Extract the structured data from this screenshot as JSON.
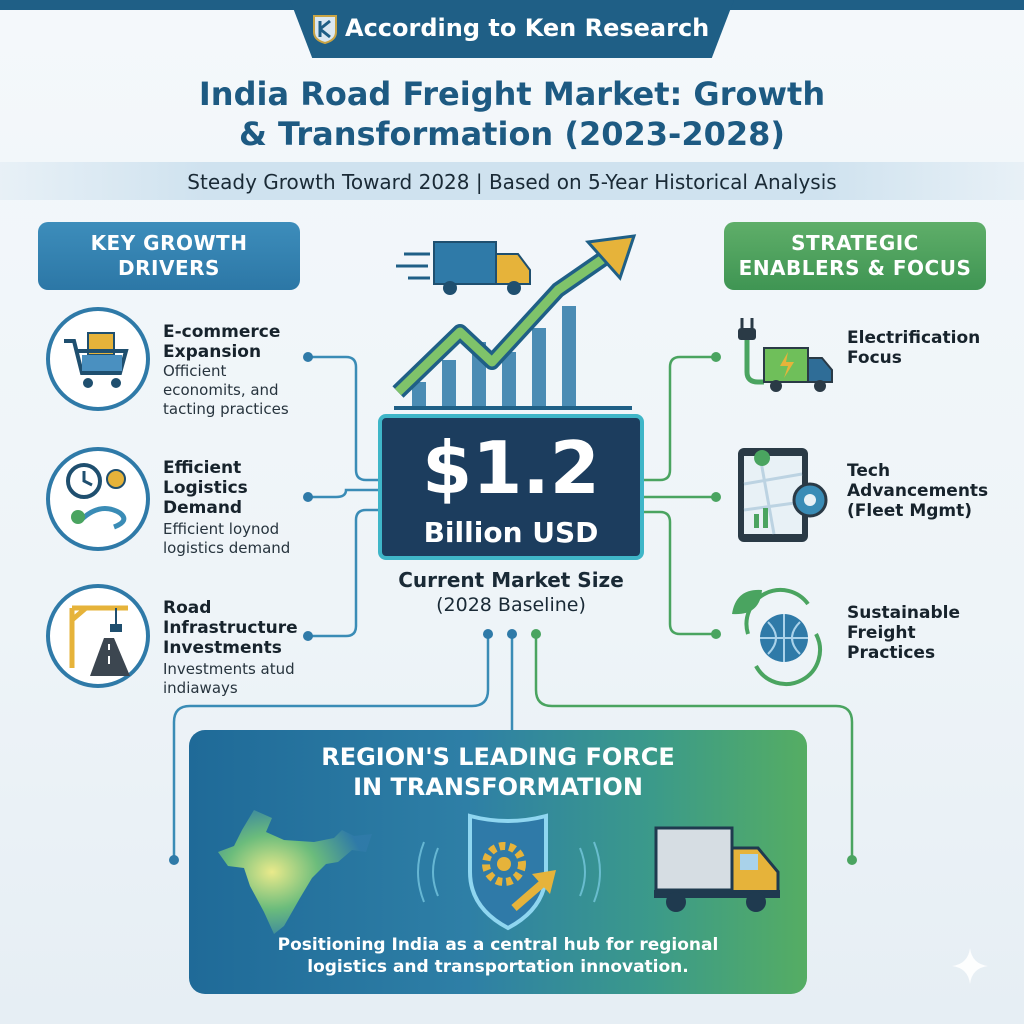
{
  "header": {
    "source": "According to Ken Research",
    "title_line1": "India Road Freight Market: Growth",
    "title_line2": "& Transformation (2023-2028)",
    "subtitle": "Steady Growth Toward 2028 | Based on 5-Year Historical Analysis"
  },
  "left_section": {
    "heading_line1": "KEY GROWTH",
    "heading_line2": "DRIVERS",
    "items": [
      {
        "title_lines": [
          "E-commerce",
          "Expansion"
        ],
        "desc_lines": [
          "Officient",
          "economits, and",
          "tacting practices"
        ],
        "icon": "shopping-cart-icon"
      },
      {
        "title_lines": [
          "Efficient",
          "Logistics",
          "Demand"
        ],
        "desc_lines": [
          "Efficient loynod",
          "logistics demand"
        ],
        "icon": "route-clock-icon"
      },
      {
        "title_lines": [
          "Road",
          "Infrastructure",
          "Investments"
        ],
        "desc_lines": [
          "Investments atud",
          "indiaways"
        ],
        "icon": "crane-road-icon"
      }
    ]
  },
  "right_section": {
    "heading_line1": "STRATEGIC",
    "heading_line2": "ENABLERS & FOCUS",
    "items": [
      {
        "title_lines": [
          "Electrification",
          "Focus"
        ],
        "icon": "electric-truck-icon"
      },
      {
        "title_lines": [
          "Tech",
          "Advancements",
          "(Fleet Mgmt)"
        ],
        "icon": "tablet-map-icon"
      },
      {
        "title_lines": [
          "Sustainable",
          "Freight",
          "Practices"
        ],
        "icon": "globe-leaf-icon"
      }
    ]
  },
  "center": {
    "value": "$1.2",
    "unit": "Billion USD",
    "caption_line1": "Current Market Size",
    "caption_line2": "(2028 Baseline)"
  },
  "bottom_panel": {
    "heading_line1": "REGION'S LEADING FORCE",
    "heading_line2": "IN TRANSFORMATION",
    "caption_line1": "Positioning India as a central hub for regional",
    "caption_line2": "logistics and transportation innovation."
  },
  "colors": {
    "primary_blue": "#1f5f86",
    "accent_green": "#4a9f5b",
    "value_box": "#1c3d5e"
  }
}
